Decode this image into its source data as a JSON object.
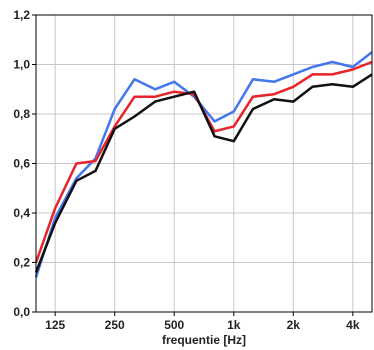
{
  "chart_data": {
    "type": "line",
    "title": "",
    "xlabel": "frequentie [Hz]",
    "ylabel": "",
    "x_scale": "log",
    "xlim": [
      100,
      5000
    ],
    "ylim": [
      0.0,
      1.2
    ],
    "grid": true,
    "legend": "none",
    "x_ticks": [
      {
        "value": 125,
        "label": "125"
      },
      {
        "value": 250,
        "label": "250"
      },
      {
        "value": 500,
        "label": "500"
      },
      {
        "value": 1000,
        "label": "1k"
      },
      {
        "value": 2000,
        "label": "2k"
      },
      {
        "value": 4000,
        "label": "4k"
      }
    ],
    "y_ticks": [
      {
        "value": 0.0,
        "label": "0,0"
      },
      {
        "value": 0.2,
        "label": "0,2"
      },
      {
        "value": 0.4,
        "label": "0,4"
      },
      {
        "value": 0.6,
        "label": "0,6"
      },
      {
        "value": 0.8,
        "label": "0,8"
      },
      {
        "value": 1.0,
        "label": "1,0"
      },
      {
        "value": 1.2,
        "label": "1,2"
      }
    ],
    "x": [
      100,
      125,
      160,
      200,
      250,
      315,
      400,
      500,
      630,
      800,
      1000,
      1250,
      1600,
      2000,
      2500,
      3150,
      4000,
      5000
    ],
    "series": [
      {
        "color": "#4477ee",
        "values": [
          0.14,
          0.38,
          0.54,
          0.62,
          0.82,
          0.94,
          0.9,
          0.93,
          0.87,
          0.77,
          0.81,
          0.94,
          0.93,
          0.96,
          0.99,
          1.01,
          0.99,
          1.05
        ]
      },
      {
        "color": "#e8232a",
        "values": [
          0.2,
          0.42,
          0.6,
          0.61,
          0.75,
          0.87,
          0.87,
          0.89,
          0.88,
          0.73,
          0.75,
          0.87,
          0.88,
          0.91,
          0.96,
          0.96,
          0.98,
          1.01
        ]
      },
      {
        "color": "#111111",
        "values": [
          0.16,
          0.36,
          0.53,
          0.57,
          0.74,
          0.79,
          0.85,
          0.87,
          0.89,
          0.71,
          0.69,
          0.82,
          0.86,
          0.85,
          0.91,
          0.92,
          0.91,
          0.96
        ]
      }
    ]
  }
}
